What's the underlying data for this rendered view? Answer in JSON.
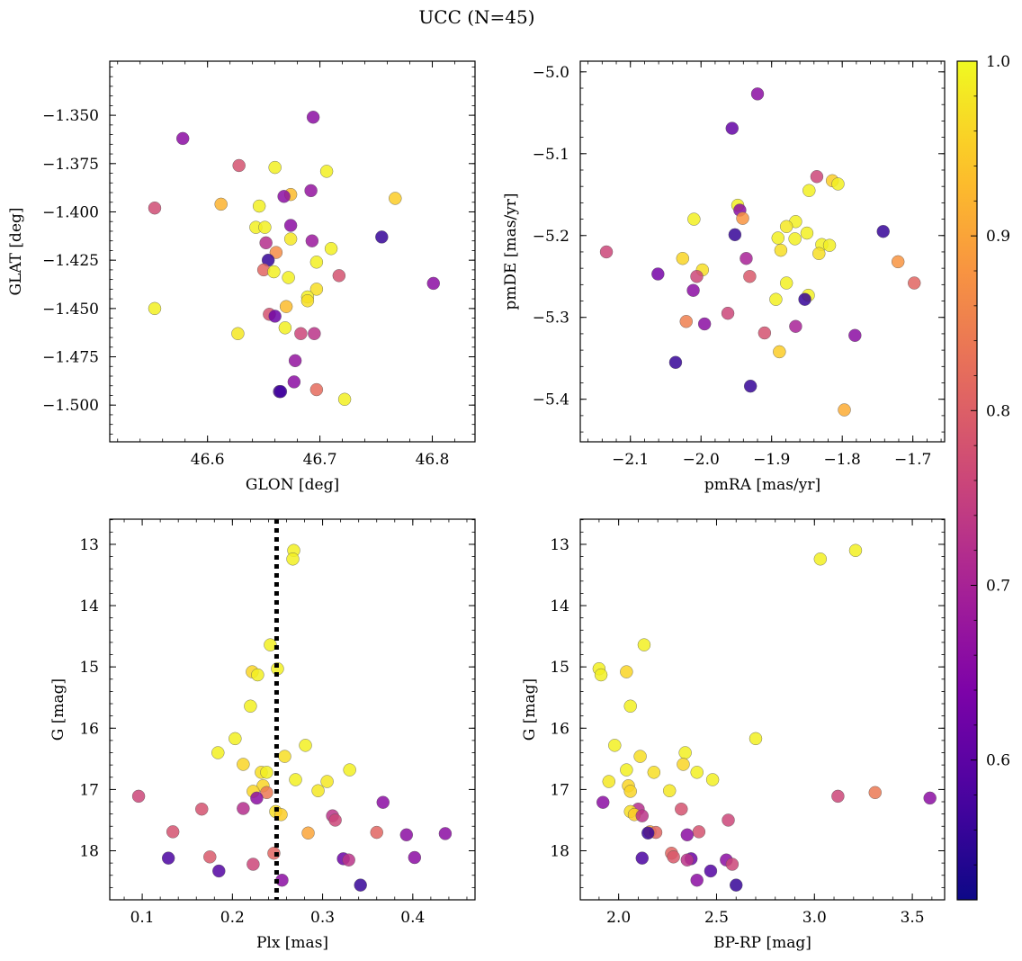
{
  "figure": {
    "title": "UCC (N=45)"
  },
  "colorbar": {
    "range": [
      0.52,
      1.0
    ],
    "ticks": [
      0.6,
      0.7,
      0.8,
      0.9,
      1.0
    ],
    "tick_labels": [
      "0.6",
      "0.7",
      "0.8",
      "0.9",
      "1.0"
    ],
    "colormap": "plasma"
  },
  "chart_data": [
    {
      "type": "scatter",
      "id": "sky",
      "xlabel": "GLON [deg]",
      "ylabel": "GLAT [deg]",
      "xlim": [
        46.513,
        46.838
      ],
      "ylim": [
        -1.519,
        -1.322
      ],
      "xticks": [
        46.6,
        46.7,
        46.8
      ],
      "xtick_labels": [
        "46.6",
        "46.7",
        "46.8"
      ],
      "yticks": [
        -1.35,
        -1.375,
        -1.4,
        -1.425,
        -1.45,
        -1.475,
        -1.5
      ],
      "ytick_labels": [
        "−1.350",
        "−1.375",
        "−1.400",
        "−1.425",
        "−1.450",
        "−1.475",
        "−1.500"
      ],
      "points": [
        {
          "x": 46.578,
          "y": -1.362,
          "p": 0.66
        },
        {
          "x": 46.694,
          "y": -1.351,
          "p": 0.66
        },
        {
          "x": 46.553,
          "y": -1.398,
          "p": 0.77
        },
        {
          "x": 46.628,
          "y": -1.376,
          "p": 0.78
        },
        {
          "x": 46.66,
          "y": -1.377,
          "p": 0.99
        },
        {
          "x": 46.706,
          "y": -1.379,
          "p": 0.99
        },
        {
          "x": 46.612,
          "y": -1.396,
          "p": 0.92
        },
        {
          "x": 46.674,
          "y": -1.391,
          "p": 0.93
        },
        {
          "x": 46.668,
          "y": -1.392,
          "p": 0.66
        },
        {
          "x": 46.692,
          "y": -1.389,
          "p": 0.67
        },
        {
          "x": 46.767,
          "y": -1.393,
          "p": 0.95
        },
        {
          "x": 46.646,
          "y": -1.397,
          "p": 0.99
        },
        {
          "x": 46.643,
          "y": -1.408,
          "p": 0.99
        },
        {
          "x": 46.651,
          "y": -1.408,
          "p": 0.99
        },
        {
          "x": 46.674,
          "y": -1.407,
          "p": 0.66
        },
        {
          "x": 46.652,
          "y": -1.416,
          "p": 0.72
        },
        {
          "x": 46.674,
          "y": -1.414,
          "p": 0.98
        },
        {
          "x": 46.693,
          "y": -1.415,
          "p": 0.68
        },
        {
          "x": 46.71,
          "y": -1.419,
          "p": 0.99
        },
        {
          "x": 46.661,
          "y": -1.421,
          "p": 0.87
        },
        {
          "x": 46.755,
          "y": -1.413,
          "p": 0.56
        },
        {
          "x": 46.654,
          "y": -1.425,
          "p": 0.56
        },
        {
          "x": 46.697,
          "y": -1.426,
          "p": 0.99
        },
        {
          "x": 46.65,
          "y": -1.43,
          "p": 0.81
        },
        {
          "x": 46.659,
          "y": -1.431,
          "p": 0.99
        },
        {
          "x": 46.672,
          "y": -1.434,
          "p": 0.99
        },
        {
          "x": 46.717,
          "y": -1.433,
          "p": 0.78
        },
        {
          "x": 46.801,
          "y": -1.437,
          "p": 0.66
        },
        {
          "x": 46.697,
          "y": -1.44,
          "p": 0.97
        },
        {
          "x": 46.689,
          "y": -1.444,
          "p": 0.99
        },
        {
          "x": 46.689,
          "y": -1.446,
          "p": 0.97
        },
        {
          "x": 46.67,
          "y": -1.449,
          "p": 0.93
        },
        {
          "x": 46.553,
          "y": -1.45,
          "p": 0.99
        },
        {
          "x": 46.655,
          "y": -1.453,
          "p": 0.78
        },
        {
          "x": 46.66,
          "y": -1.454,
          "p": 0.62
        },
        {
          "x": 46.669,
          "y": -1.46,
          "p": 0.99
        },
        {
          "x": 46.627,
          "y": -1.463,
          "p": 0.98
        },
        {
          "x": 46.683,
          "y": -1.463,
          "p": 0.76
        },
        {
          "x": 46.695,
          "y": -1.463,
          "p": 0.73
        },
        {
          "x": 46.678,
          "y": -1.477,
          "p": 0.67
        },
        {
          "x": 46.677,
          "y": -1.488,
          "p": 0.66
        },
        {
          "x": 46.664,
          "y": -1.493,
          "p": 0.58
        },
        {
          "x": 46.697,
          "y": -1.492,
          "p": 0.82
        },
        {
          "x": 46.722,
          "y": -1.497,
          "p": 0.99
        },
        {
          "x": 46.665,
          "y": -1.493,
          "p": 0.57
        }
      ]
    },
    {
      "type": "scatter",
      "id": "pm",
      "xlabel": "pmRA [mas/yr]",
      "ylabel": "pmDE [mas/yr]",
      "xlim": [
        -2.171,
        -1.655
      ],
      "ylim": [
        -5.452,
        -4.987
      ],
      "xticks": [
        -2.1,
        -2.0,
        -1.9,
        -1.8,
        -1.7
      ],
      "xtick_labels": [
        "−2.1",
        "−2.0",
        "−1.9",
        "−1.8",
        "−1.7"
      ],
      "yticks": [
        -5.0,
        -5.1,
        -5.2,
        -5.3,
        -5.4
      ],
      "ytick_labels": [
        "−5.0",
        "−5.1",
        "−5.2",
        "−5.3",
        "−5.4"
      ],
      "points": [
        {
          "x": -1.92,
          "y": -5.027,
          "p": 0.66
        },
        {
          "x": -1.956,
          "y": -5.069,
          "p": 0.61
        },
        {
          "x": -1.836,
          "y": -5.128,
          "p": 0.76
        },
        {
          "x": -1.814,
          "y": -5.133,
          "p": 0.95
        },
        {
          "x": -1.806,
          "y": -5.137,
          "p": 0.99
        },
        {
          "x": -1.847,
          "y": -5.145,
          "p": 0.99
        },
        {
          "x": -1.948,
          "y": -5.163,
          "p": 0.99
        },
        {
          "x": -1.945,
          "y": -5.169,
          "p": 0.66
        },
        {
          "x": -1.941,
          "y": -5.179,
          "p": 0.88
        },
        {
          "x": -2.01,
          "y": -5.18,
          "p": 0.99
        },
        {
          "x": -1.866,
          "y": -5.183,
          "p": 0.99
        },
        {
          "x": -1.879,
          "y": -5.189,
          "p": 0.98
        },
        {
          "x": -1.742,
          "y": -5.195,
          "p": 0.56
        },
        {
          "x": -1.85,
          "y": -5.197,
          "p": 0.99
        },
        {
          "x": -1.952,
          "y": -5.199,
          "p": 0.56
        },
        {
          "x": -1.891,
          "y": -5.203,
          "p": 0.99
        },
        {
          "x": -1.867,
          "y": -5.204,
          "p": 0.99
        },
        {
          "x": -1.829,
          "y": -5.211,
          "p": 0.99
        },
        {
          "x": -1.818,
          "y": -5.212,
          "p": 0.99
        },
        {
          "x": -1.887,
          "y": -5.218,
          "p": 0.97
        },
        {
          "x": -2.134,
          "y": -5.22,
          "p": 0.76
        },
        {
          "x": -1.833,
          "y": -5.222,
          "p": 0.97
        },
        {
          "x": -2.026,
          "y": -5.228,
          "p": 0.96
        },
        {
          "x": -1.936,
          "y": -5.228,
          "p": 0.7
        },
        {
          "x": -1.721,
          "y": -5.232,
          "p": 0.88
        },
        {
          "x": -1.998,
          "y": -5.242,
          "p": 0.97
        },
        {
          "x": -2.061,
          "y": -5.247,
          "p": 0.63
        },
        {
          "x": -2.006,
          "y": -5.25,
          "p": 0.76
        },
        {
          "x": -1.931,
          "y": -5.25,
          "p": 0.79
        },
        {
          "x": -1.879,
          "y": -5.258,
          "p": 0.99
        },
        {
          "x": -1.698,
          "y": -5.258,
          "p": 0.81
        },
        {
          "x": -2.011,
          "y": -5.267,
          "p": 0.66
        },
        {
          "x": -1.848,
          "y": -5.273,
          "p": 0.99
        },
        {
          "x": -1.894,
          "y": -5.278,
          "p": 0.99
        },
        {
          "x": -1.853,
          "y": -5.278,
          "p": 0.56
        },
        {
          "x": -1.962,
          "y": -5.295,
          "p": 0.76
        },
        {
          "x": -2.021,
          "y": -5.305,
          "p": 0.85
        },
        {
          "x": -1.995,
          "y": -5.308,
          "p": 0.66
        },
        {
          "x": -1.866,
          "y": -5.311,
          "p": 0.7
        },
        {
          "x": -1.91,
          "y": -5.319,
          "p": 0.78
        },
        {
          "x": -1.782,
          "y": -5.322,
          "p": 0.66
        },
        {
          "x": -1.889,
          "y": -5.342,
          "p": 0.95
        },
        {
          "x": -2.036,
          "y": -5.355,
          "p": 0.56
        },
        {
          "x": -1.93,
          "y": -5.384,
          "p": 0.56
        },
        {
          "x": -1.797,
          "y": -5.413,
          "p": 0.91
        }
      ]
    },
    {
      "type": "scatter",
      "id": "plx",
      "xlabel": "Plx [mas]",
      "ylabel": "G [mag]",
      "xlim": [
        0.064,
        0.469
      ],
      "ylim": [
        18.8,
        12.59
      ],
      "y_inverted": true,
      "xticks": [
        0.1,
        0.2,
        0.3,
        0.4
      ],
      "xtick_labels": [
        "0.1",
        "0.2",
        "0.3",
        "0.4"
      ],
      "yticks": [
        13,
        14,
        15,
        16,
        17,
        18
      ],
      "ytick_labels": [
        "13",
        "14",
        "15",
        "16",
        "17",
        "18"
      ],
      "vline": 0.249,
      "points": [
        {
          "x": 0.268,
          "y": 13.1,
          "p": 0.99
        },
        {
          "x": 0.267,
          "y": 13.24,
          "p": 0.99
        },
        {
          "x": 0.242,
          "y": 14.64,
          "p": 0.99
        },
        {
          "x": 0.25,
          "y": 15.03,
          "p": 0.99
        },
        {
          "x": 0.222,
          "y": 15.08,
          "p": 0.96
        },
        {
          "x": 0.228,
          "y": 15.13,
          "p": 0.99
        },
        {
          "x": 0.22,
          "y": 15.64,
          "p": 0.99
        },
        {
          "x": 0.203,
          "y": 16.17,
          "p": 0.99
        },
        {
          "x": 0.281,
          "y": 16.28,
          "p": 0.99
        },
        {
          "x": 0.184,
          "y": 16.4,
          "p": 0.99
        },
        {
          "x": 0.258,
          "y": 16.46,
          "p": 0.97
        },
        {
          "x": 0.212,
          "y": 16.59,
          "p": 0.96
        },
        {
          "x": 0.33,
          "y": 16.68,
          "p": 0.99
        },
        {
          "x": 0.232,
          "y": 16.72,
          "p": 0.97
        },
        {
          "x": 0.238,
          "y": 16.72,
          "p": 0.99
        },
        {
          "x": 0.27,
          "y": 16.84,
          "p": 0.99
        },
        {
          "x": 0.305,
          "y": 16.87,
          "p": 0.98
        },
        {
          "x": 0.234,
          "y": 16.94,
          "p": 0.96
        },
        {
          "x": 0.223,
          "y": 17.03,
          "p": 0.96
        },
        {
          "x": 0.238,
          "y": 17.05,
          "p": 0.84
        },
        {
          "x": 0.295,
          "y": 17.02,
          "p": 0.98
        },
        {
          "x": 0.096,
          "y": 17.11,
          "p": 0.76
        },
        {
          "x": 0.227,
          "y": 17.14,
          "p": 0.66
        },
        {
          "x": 0.367,
          "y": 17.21,
          "p": 0.66
        },
        {
          "x": 0.166,
          "y": 17.32,
          "p": 0.78
        },
        {
          "x": 0.212,
          "y": 17.31,
          "p": 0.72
        },
        {
          "x": 0.248,
          "y": 17.36,
          "p": 0.97
        },
        {
          "x": 0.254,
          "y": 17.41,
          "p": 0.95
        },
        {
          "x": 0.311,
          "y": 17.43,
          "p": 0.73
        },
        {
          "x": 0.314,
          "y": 17.5,
          "p": 0.76
        },
        {
          "x": 0.134,
          "y": 17.69,
          "p": 0.78
        },
        {
          "x": 0.284,
          "y": 17.71,
          "p": 0.9
        },
        {
          "x": 0.36,
          "y": 17.7,
          "p": 0.81
        },
        {
          "x": 0.393,
          "y": 17.74,
          "p": 0.66
        },
        {
          "x": 0.436,
          "y": 17.72,
          "p": 0.66
        },
        {
          "x": 0.246,
          "y": 18.04,
          "p": 0.81
        },
        {
          "x": 0.175,
          "y": 18.1,
          "p": 0.79
        },
        {
          "x": 0.129,
          "y": 18.12,
          "p": 0.58
        },
        {
          "x": 0.323,
          "y": 18.13,
          "p": 0.62
        },
        {
          "x": 0.329,
          "y": 18.15,
          "p": 0.73
        },
        {
          "x": 0.402,
          "y": 18.11,
          "p": 0.66
        },
        {
          "x": 0.223,
          "y": 18.22,
          "p": 0.76
        },
        {
          "x": 0.185,
          "y": 18.33,
          "p": 0.59
        },
        {
          "x": 0.255,
          "y": 18.48,
          "p": 0.66
        },
        {
          "x": 0.342,
          "y": 18.56,
          "p": 0.56
        }
      ]
    },
    {
      "type": "scatter",
      "id": "cmd",
      "xlabel": "BP-RP [mag]",
      "ylabel": "G [mag]",
      "xlim": [
        1.804,
        3.665
      ],
      "ylim": [
        18.8,
        12.59
      ],
      "y_inverted": true,
      "xticks": [
        2.0,
        2.5,
        3.0,
        3.5
      ],
      "xtick_labels": [
        "2.0",
        "2.5",
        "3.0",
        "3.5"
      ],
      "yticks": [
        13,
        14,
        15,
        16,
        17,
        18
      ],
      "ytick_labels": [
        "13",
        "14",
        "15",
        "16",
        "17",
        "18"
      ],
      "points": [
        {
          "x": 3.21,
          "y": 13.1,
          "p": 0.99
        },
        {
          "x": 3.03,
          "y": 13.24,
          "p": 0.99
        },
        {
          "x": 2.13,
          "y": 14.64,
          "p": 0.99
        },
        {
          "x": 1.9,
          "y": 15.03,
          "p": 0.99
        },
        {
          "x": 2.04,
          "y": 15.08,
          "p": 0.96
        },
        {
          "x": 1.91,
          "y": 15.13,
          "p": 0.99
        },
        {
          "x": 2.06,
          "y": 15.64,
          "p": 0.99
        },
        {
          "x": 2.7,
          "y": 16.17,
          "p": 0.99
        },
        {
          "x": 1.98,
          "y": 16.28,
          "p": 0.99
        },
        {
          "x": 2.34,
          "y": 16.4,
          "p": 0.99
        },
        {
          "x": 2.11,
          "y": 16.46,
          "p": 0.97
        },
        {
          "x": 2.33,
          "y": 16.59,
          "p": 0.96
        },
        {
          "x": 2.04,
          "y": 16.68,
          "p": 0.99
        },
        {
          "x": 2.18,
          "y": 16.72,
          "p": 0.97
        },
        {
          "x": 2.4,
          "y": 16.72,
          "p": 0.99
        },
        {
          "x": 2.48,
          "y": 16.84,
          "p": 0.99
        },
        {
          "x": 1.95,
          "y": 16.87,
          "p": 0.98
        },
        {
          "x": 2.05,
          "y": 16.94,
          "p": 0.96
        },
        {
          "x": 2.06,
          "y": 17.03,
          "p": 0.96
        },
        {
          "x": 3.31,
          "y": 17.05,
          "p": 0.84
        },
        {
          "x": 2.26,
          "y": 17.02,
          "p": 0.98
        },
        {
          "x": 3.12,
          "y": 17.11,
          "p": 0.76
        },
        {
          "x": 3.59,
          "y": 17.14,
          "p": 0.66
        },
        {
          "x": 1.92,
          "y": 17.21,
          "p": 0.66
        },
        {
          "x": 2.1,
          "y": 17.32,
          "p": 0.72
        },
        {
          "x": 2.32,
          "y": 17.32,
          "p": 0.78
        },
        {
          "x": 2.06,
          "y": 17.36,
          "p": 0.97
        },
        {
          "x": 2.08,
          "y": 17.41,
          "p": 0.95
        },
        {
          "x": 2.12,
          "y": 17.43,
          "p": 0.73
        },
        {
          "x": 2.56,
          "y": 17.5,
          "p": 0.76
        },
        {
          "x": 2.16,
          "y": 17.69,
          "p": 0.9
        },
        {
          "x": 2.19,
          "y": 17.7,
          "p": 0.81
        },
        {
          "x": 2.41,
          "y": 17.69,
          "p": 0.78
        },
        {
          "x": 2.15,
          "y": 17.71,
          "p": 0.56
        },
        {
          "x": 2.35,
          "y": 17.74,
          "p": 0.66
        },
        {
          "x": 2.27,
          "y": 18.04,
          "p": 0.81
        },
        {
          "x": 2.28,
          "y": 18.1,
          "p": 0.79
        },
        {
          "x": 2.12,
          "y": 18.12,
          "p": 0.58
        },
        {
          "x": 2.37,
          "y": 18.13,
          "p": 0.62
        },
        {
          "x": 2.35,
          "y": 18.15,
          "p": 0.73
        },
        {
          "x": 2.55,
          "y": 18.15,
          "p": 0.66
        },
        {
          "x": 2.58,
          "y": 18.22,
          "p": 0.76
        },
        {
          "x": 2.47,
          "y": 18.33,
          "p": 0.59
        },
        {
          "x": 2.4,
          "y": 18.48,
          "p": 0.66
        },
        {
          "x": 2.6,
          "y": 18.56,
          "p": 0.56
        }
      ]
    }
  ]
}
